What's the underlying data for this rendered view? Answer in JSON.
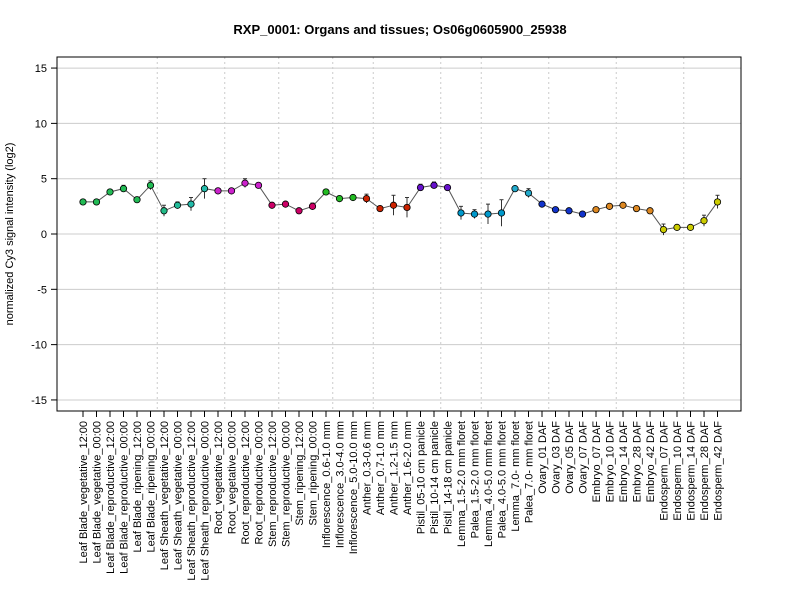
{
  "chart_data": {
    "type": "line",
    "title": "RXP_0001: Organs and tissues; Os06g0605900_25938",
    "xlabel": "",
    "ylabel": "normalized Cy3 signal intensity (log2)",
    "ylim": [
      -16,
      16
    ],
    "yticks": [
      -15,
      -10,
      -5,
      0,
      5,
      10,
      15
    ],
    "grid": true,
    "legend": "none",
    "line_color": "#555555",
    "group_separators_after": [
      5,
      10,
      14,
      18,
      21,
      26,
      29,
      34,
      39,
      44
    ],
    "categories": [
      "Leaf Blade_vegetative_12:00",
      "Leaf Blade_vegetative_00:00",
      "Leaf Blade_reproductive_12:00",
      "Leaf Blade_reproductive_00:00",
      "Leaf Blade_ripening_12:00",
      "Leaf Blade_ripening_00:00",
      "Leaf Sheath_vegetative_12:00",
      "Leaf Sheath_vegetative_00:00",
      "Leaf Sheath_reproductive_12:00",
      "Leaf Sheath_reproductive_00:00",
      "Root_vegetative_12:00",
      "Root_vegetative_00:00",
      "Root_reproductive_12:00",
      "Root_reproductive_00:00",
      "Stem_reproductive_12:00",
      "Stem_reproductive_00:00",
      "Stem_ripening_12:00",
      "Stem_ripening_00:00",
      "Inflorescence_0.6-1.0 mm",
      "Inflorescence_3.0-4.0 mm",
      "Inflorescence_5.0-10.0 mm",
      "Anther_0.3-0.6 mm",
      "Anther_0.7-1.0 mm",
      "Anther_1.2-1.5 mm",
      "Anther_1.6-2.0 mm",
      "Pistil_05-10 cm panicle",
      "Pistil_10-14 cm panicle",
      "Pistil_14-18 cm panicle",
      "Lemma_1.5-2.0 mm floret",
      "Palea_1.5-2.0 mm floret",
      "Lemma_4.0-5.0 mm floret",
      "Palea_4.0-5.0 mm floret",
      "Lemma_7.0- mm floret",
      "Palea_7.0- mm floret",
      "Ovary_01 DAF",
      "Ovary_03 DAF",
      "Ovary_05 DAF",
      "Ovary_07 DAF",
      "Embryo_07 DAF",
      "Embryo_10 DAF",
      "Embryo_14 DAF",
      "Embryo_28 DAF",
      "Embryo_42 DAF",
      "Endosperm_07 DAF",
      "Endosperm_10 DAF",
      "Endosperm_14 DAF",
      "Endosperm_28 DAF",
      "Endosperm_42 DAF"
    ],
    "values": [
      2.9,
      2.9,
      3.8,
      4.1,
      3.1,
      4.4,
      2.1,
      2.6,
      2.7,
      4.1,
      3.9,
      3.9,
      4.6,
      4.4,
      2.6,
      2.7,
      2.1,
      2.5,
      3.8,
      3.2,
      3.3,
      3.2,
      2.3,
      2.6,
      2.4,
      4.2,
      4.4,
      4.2,
      1.9,
      1.8,
      1.8,
      1.9,
      4.1,
      3.7,
      2.7,
      2.2,
      2.1,
      1.8,
      2.2,
      2.5,
      2.6,
      2.3,
      2.1,
      0.4,
      0.6,
      0.6,
      1.2,
      2.9
    ],
    "errors": [
      0.1,
      0.1,
      0.2,
      0.3,
      0.1,
      0.4,
      0.5,
      0.3,
      0.6,
      0.9,
      0.1,
      0.1,
      0.4,
      0.1,
      0.2,
      0.2,
      0.1,
      0.3,
      0.2,
      0.2,
      0.1,
      0.4,
      0.1,
      0.9,
      0.9,
      0.3,
      0.3,
      0.2,
      0.6,
      0.4,
      0.9,
      1.2,
      0.2,
      0.4,
      0.2,
      0.1,
      0.1,
      0.1,
      0.1,
      0.2,
      0.2,
      0.1,
      0.2,
      0.5,
      0.2,
      0.1,
      0.5,
      0.6
    ],
    "colors": [
      "#22bb55",
      "#22bb55",
      "#22bb55",
      "#22bb55",
      "#22bb55",
      "#22bb55",
      "#22bb88",
      "#22bb99",
      "#22bbaa",
      "#22bbaa",
      "#cc22cc",
      "#cc22cc",
      "#cc22cc",
      "#cc22cc",
      "#cc0066",
      "#cc0066",
      "#cc0066",
      "#cc0066",
      "#22bb22",
      "#22bb22",
      "#22bb22",
      "#cc2200",
      "#cc2200",
      "#cc2200",
      "#cc2200",
      "#6611cc",
      "#6611cc",
      "#6611cc",
      "#0099cc",
      "#0099cc",
      "#0099cc",
      "#0099cc",
      "#22aacc",
      "#22aacc",
      "#1133cc",
      "#1133cc",
      "#1133cc",
      "#1133cc",
      "#dd8822",
      "#dd8822",
      "#dd8822",
      "#dd8822",
      "#dd8822",
      "#cccc00",
      "#cccc00",
      "#cccc00",
      "#cccc00",
      "#cccc00"
    ]
  }
}
